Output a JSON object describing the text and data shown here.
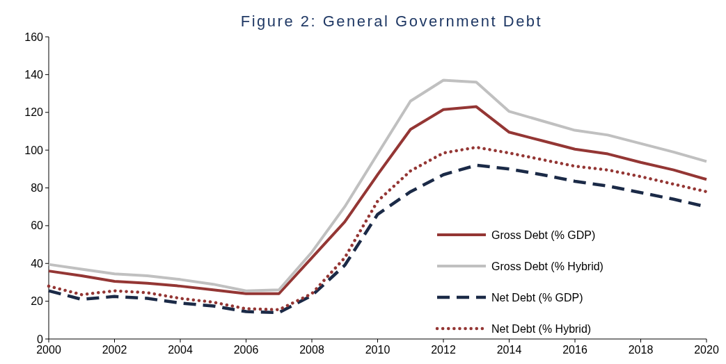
{
  "chart_data": {
    "type": "line",
    "title": "Figure 2: General Government Debt",
    "x": [
      2000,
      2001,
      2002,
      2003,
      2004,
      2005,
      2006,
      2007,
      2008,
      2009,
      2010,
      2011,
      2012,
      2013,
      2014,
      2015,
      2016,
      2017,
      2018,
      2019,
      2020
    ],
    "xlim": [
      2000,
      2020
    ],
    "xticks": [
      2000,
      2002,
      2004,
      2006,
      2008,
      2010,
      2012,
      2014,
      2016,
      2018,
      2020
    ],
    "ylim": [
      0,
      160
    ],
    "yticks": [
      0,
      20,
      40,
      60,
      80,
      100,
      120,
      140,
      160
    ],
    "grid": false,
    "legend": "bottom right",
    "marker": "none",
    "series": [
      {
        "name": "Gross Debt (% GDP)",
        "color": "#943634",
        "line_style": "solid",
        "values": [
          36,
          33.5,
          30.5,
          29.5,
          28,
          26,
          24,
          24,
          43,
          62,
          87,
          111,
          121.5,
          123,
          109.5,
          105,
          100.5,
          98,
          93.5,
          89.5,
          84.5
        ]
      },
      {
        "name": "Gross Debt (% Hybrid)",
        "color": "#c0c0c0",
        "line_style": "solid",
        "values": [
          39.5,
          37,
          34.5,
          33.5,
          31.5,
          29,
          25.5,
          26,
          46,
          70,
          98,
          126,
          137,
          136,
          120.5,
          115.5,
          110.5,
          108,
          103.5,
          99,
          94
        ]
      },
      {
        "name": "Net Debt (% GDP)",
        "color": "#1b2a47",
        "line_style": "dashed",
        "values": [
          25.5,
          21,
          22.5,
          21.5,
          19,
          17.5,
          14.5,
          14,
          23,
          39,
          66,
          78,
          87,
          92,
          90,
          87,
          83.5,
          81,
          77.5,
          74,
          70
        ]
      },
      {
        "name": "Net Debt (% Hybrid)",
        "color": "#943634",
        "line_style": "dotted",
        "values": [
          28,
          23.5,
          25.5,
          24.5,
          21.5,
          19.5,
          16,
          15.5,
          24,
          43,
          73,
          89,
          98.5,
          101.5,
          98.5,
          95,
          91.5,
          89.5,
          86,
          82,
          78
        ]
      }
    ]
  }
}
